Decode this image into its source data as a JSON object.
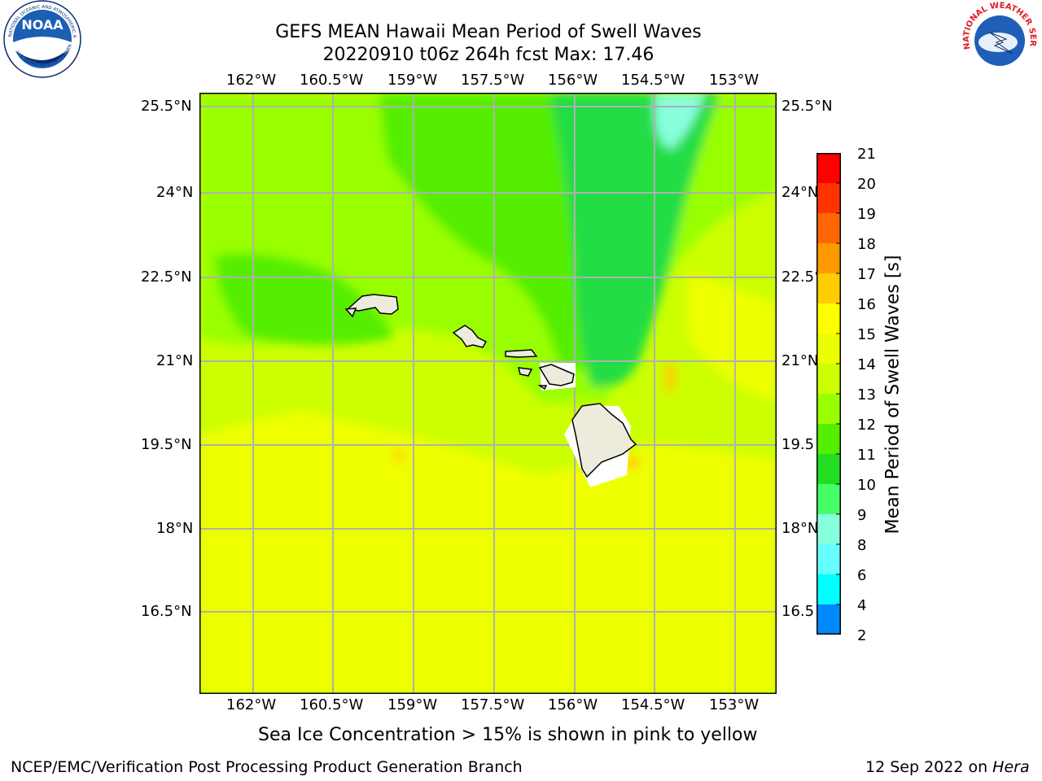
{
  "header": {
    "title_line1": "GEFS MEAN Hawaii Mean Period of Swell Waves",
    "title_line2": "20220910 t06z 264h fcst   Max: 17.46"
  },
  "logos": {
    "left": {
      "icon": "noaa-logo",
      "text": "NOAA",
      "ring_text_top": "NATIONAL OCEANIC AND ATMOSPHERIC ADMINISTRATION",
      "ring_text_bottom": "U.S. DEPARTMENT OF COMMERCE",
      "colors": {
        "blue": "#1b5fb5",
        "navy": "#0a2c6e"
      }
    },
    "right": {
      "icon": "nws-logo",
      "ring_text": "NATIONAL WEATHER SERVICE",
      "colors": {
        "red": "#e31b23",
        "blue": "#1f5fb8"
      }
    }
  },
  "map": {
    "lon_labels": [
      "162°W",
      "160.5°W",
      "159°W",
      "157.5°W",
      "156°W",
      "154.5°W",
      "153°W"
    ],
    "lat_labels_left": [
      "25.5°N",
      "24°N",
      "22.5°N",
      "21°N",
      "19.5°N",
      "18°N",
      "16.5°N"
    ],
    "lat_labels_right": [
      "25.5°N",
      "24°N",
      "22.5°",
      "21°N",
      "19.5",
      "18°N",
      "16.5"
    ],
    "land_color": "#ecebdc",
    "coast_color": "#000000",
    "grid_color": "#b0b0b0"
  },
  "colorbar": {
    "label": "Mean Period of Swell Waves [s]",
    "ticks": [
      "21",
      "20",
      "19",
      "18",
      "17",
      "16",
      "15",
      "14",
      "13",
      "12",
      "11",
      "10",
      "9",
      "8",
      "6",
      "4",
      "2"
    ],
    "colors_top_to_bottom": [
      "#ff0000",
      "#ff3300",
      "#ff6600",
      "#ff9900",
      "#ffcc00",
      "#ffff00",
      "#ecff00",
      "#ccff00",
      "#99ff00",
      "#55ee00",
      "#22dd22",
      "#44ff66",
      "#88ffdd",
      "#66ffff",
      "#00ffff",
      "#0088ff",
      "#0000ff"
    ]
  },
  "footer": {
    "note": "Sea Ice Concentration > 15% is shown in pink to yellow",
    "branch": "NCEP/EMC/Verification Post Processing Product Generation Branch",
    "date_prefix": "12 Sep 2022 on ",
    "machine": "Hera"
  }
}
